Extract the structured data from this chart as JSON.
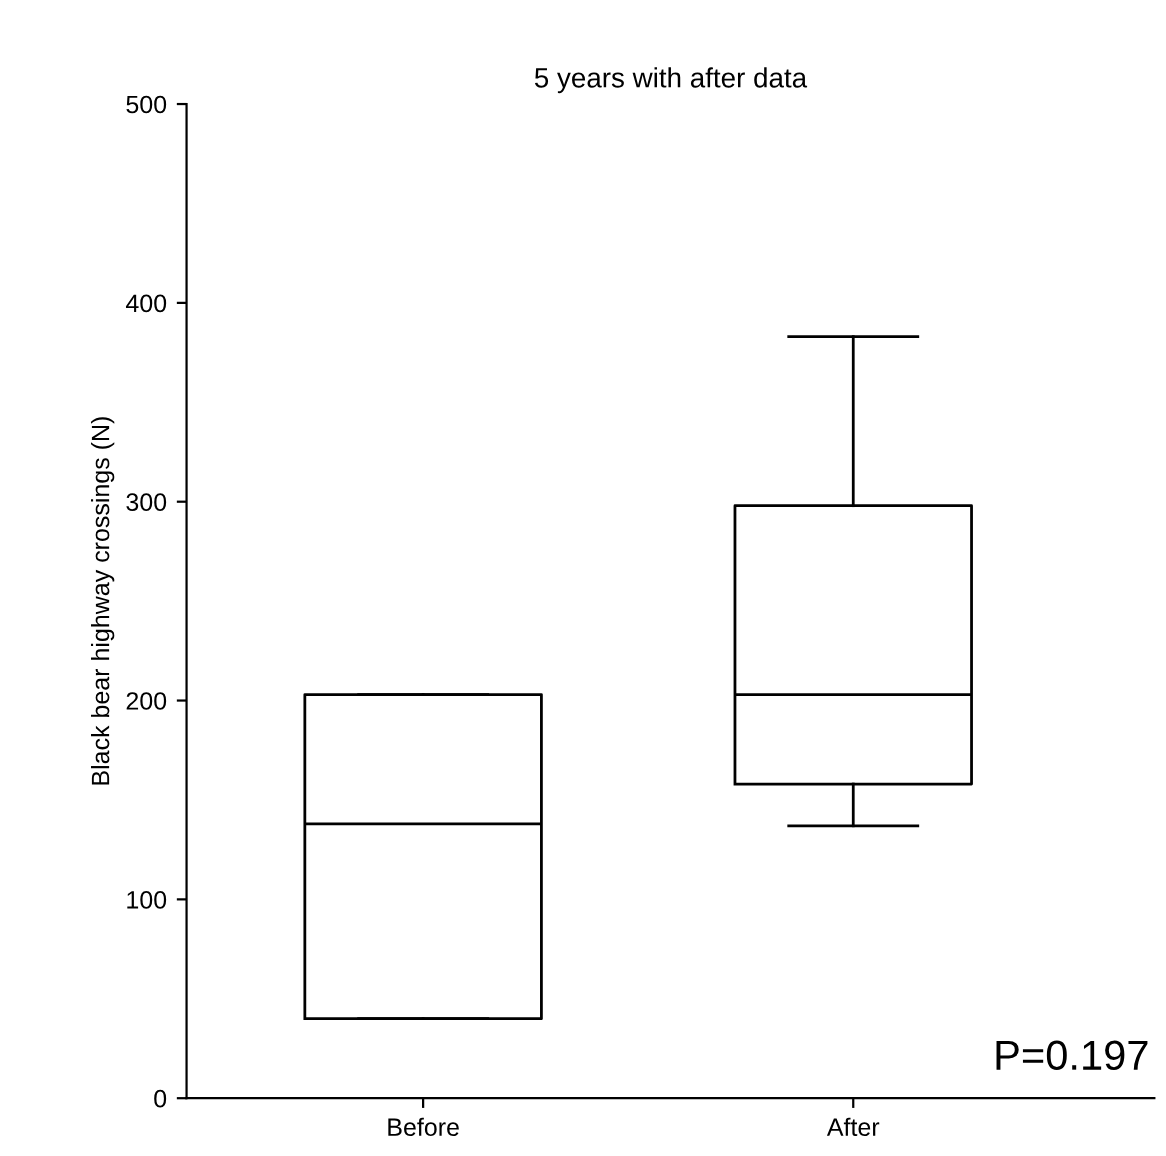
{
  "chart_data": {
    "type": "box",
    "title": "5 years with after data",
    "ylabel": "Black bear highway crossings (N)",
    "categories": [
      "Before",
      "After"
    ],
    "boxes": [
      {
        "low": 40,
        "q1": 40,
        "median": 138,
        "q3": 203,
        "high": 203
      },
      {
        "low": 137,
        "q1": 158,
        "median": 203,
        "q3": 298,
        "high": 383
      }
    ],
    "ylim": [
      0,
      500
    ],
    "yticks": [
      0,
      100,
      200,
      300,
      400,
      500
    ],
    "grid": false,
    "annotations": [
      "P=0.197"
    ]
  }
}
